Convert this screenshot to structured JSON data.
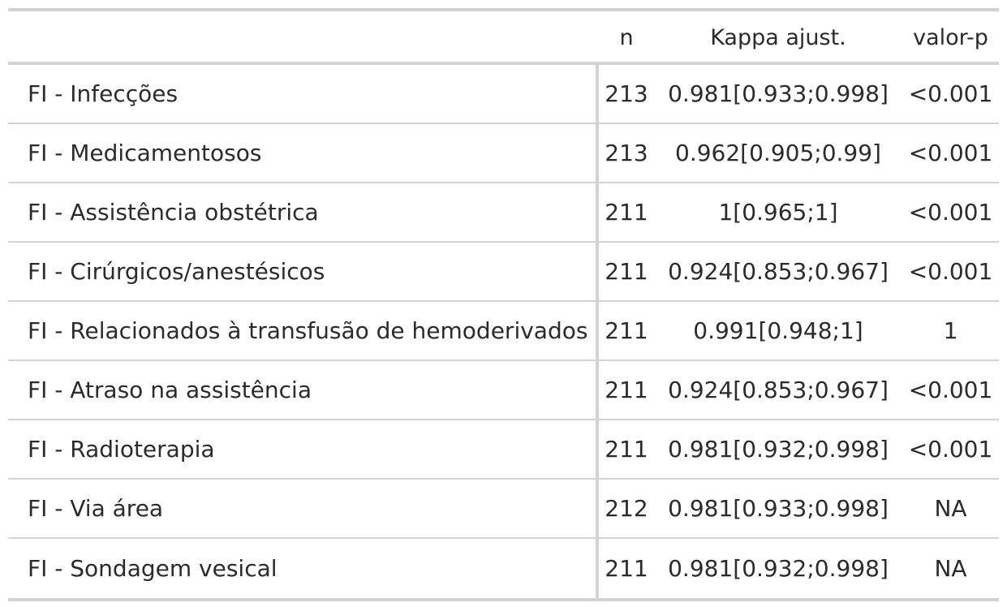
{
  "header": {
    "label": "",
    "n": "n",
    "kappa": "Kappa ajust.",
    "p": "valor-p"
  },
  "rows": [
    {
      "label": "FI - Infecções",
      "n": "213",
      "kappa": "0.981[0.933;0.998]",
      "p": "<0.001"
    },
    {
      "label": "FI - Medicamentosos",
      "n": "213",
      "kappa": "0.962[0.905;0.99]",
      "p": "<0.001"
    },
    {
      "label": "FI - Assistência obstétrica",
      "n": "211",
      "kappa": "1[0.965;1]",
      "p": "<0.001"
    },
    {
      "label": "FI - Cirúrgicos/anestésicos",
      "n": "211",
      "kappa": "0.924[0.853;0.967]",
      "p": "<0.001"
    },
    {
      "label": "FI - Relacionados à transfusão de hemoderivados",
      "n": "211",
      "kappa": "0.991[0.948;1]",
      "p": "1"
    },
    {
      "label": "FI - Atraso na assistência",
      "n": "211",
      "kappa": "0.924[0.853;0.967]",
      "p": "<0.001"
    },
    {
      "label": "FI - Radioterapia",
      "n": "211",
      "kappa": "0.981[0.932;0.998]",
      "p": "<0.001"
    },
    {
      "label": "FI - Via área",
      "n": "212",
      "kappa": "0.981[0.933;0.998]",
      "p": "NA"
    },
    {
      "label": "FI - Sondagem vesical",
      "n": "211",
      "kappa": "0.981[0.932;0.998]",
      "p": "NA"
    }
  ]
}
